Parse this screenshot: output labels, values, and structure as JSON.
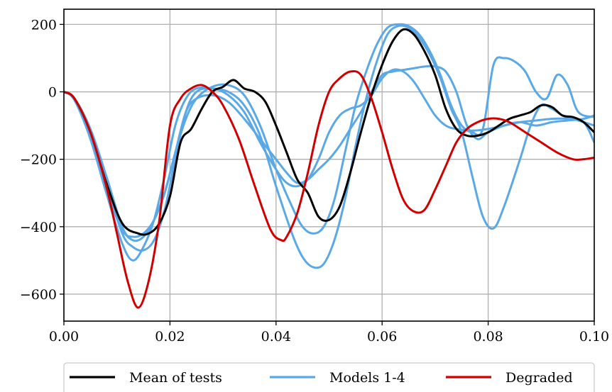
{
  "chart_data": {
    "type": "line",
    "title": "",
    "xlabel": "",
    "ylabel": "",
    "xlim": [
      0.0,
      0.1
    ],
    "ylim": [
      -680,
      245
    ],
    "xticks": [
      0.0,
      0.02,
      0.04,
      0.06,
      0.08,
      0.1
    ],
    "xtick_labels": [
      "0.00",
      "0.02",
      "0.04",
      "0.06",
      "0.08",
      "0.10"
    ],
    "yticks": [
      200,
      0,
      -200,
      -400,
      -600
    ],
    "ytick_labels": [
      "200",
      "0",
      "−200",
      "−400",
      "−600"
    ],
    "grid": true,
    "legend": {
      "placement": "bottom, outside plot",
      "entries": [
        {
          "label": "Mean of tests",
          "color": "#000000"
        },
        {
          "label": "Models 1-4",
          "color": "#5aa9e6"
        },
        {
          "label": "Degraded",
          "color": "#d10000"
        }
      ]
    },
    "series": [
      {
        "name": "Mean of tests",
        "color": "#000000",
        "x": [
          0,
          0.002,
          0.005,
          0.008,
          0.011,
          0.014,
          0.016,
          0.018,
          0.02,
          0.022,
          0.024,
          0.026,
          0.028,
          0.03,
          0.032,
          0.034,
          0.036,
          0.038,
          0.04,
          0.042,
          0.044,
          0.046,
          0.048,
          0.05,
          0.052,
          0.054,
          0.056,
          0.058,
          0.06,
          0.062,
          0.064,
          0.066,
          0.068,
          0.07,
          0.072,
          0.074,
          0.076,
          0.078,
          0.08,
          0.082,
          0.084,
          0.086,
          0.088,
          0.09,
          0.092,
          0.094,
          0.096,
          0.098,
          0.1
        ],
        "y": [
          0,
          -20,
          -120,
          -270,
          -390,
          -420,
          -420,
          -390,
          -310,
          -150,
          -110,
          -50,
          0,
          15,
          35,
          10,
          0,
          -30,
          -100,
          -180,
          -260,
          -300,
          -370,
          -380,
          -340,
          -240,
          -120,
          -10,
          80,
          150,
          185,
          170,
          120,
          50,
          -50,
          -110,
          -130,
          -130,
          -120,
          -100,
          -80,
          -70,
          -60,
          -40,
          -45,
          -70,
          -75,
          -90,
          -120
        ]
      },
      {
        "name": "Models 1-4 (a)",
        "color": "#5aa9e6",
        "x": [
          0,
          0.002,
          0.005,
          0.008,
          0.011,
          0.013,
          0.015,
          0.017,
          0.019,
          0.021,
          0.023,
          0.025,
          0.028,
          0.031,
          0.034,
          0.037,
          0.04,
          0.043,
          0.045,
          0.047,
          0.049,
          0.051,
          0.053,
          0.055,
          0.057,
          0.059,
          0.061,
          0.063,
          0.065,
          0.067,
          0.069,
          0.071,
          0.073,
          0.075,
          0.077,
          0.079,
          0.081,
          0.083,
          0.086,
          0.088,
          0.09,
          0.092,
          0.094,
          0.096,
          0.098,
          0.1
        ],
        "y": [
          0,
          -25,
          -140,
          -300,
          -450,
          -500,
          -460,
          -380,
          -250,
          -100,
          -20,
          10,
          10,
          0,
          -40,
          -130,
          -280,
          -420,
          -490,
          -520,
          -510,
          -440,
          -320,
          -160,
          -20,
          90,
          170,
          195,
          190,
          160,
          110,
          40,
          -50,
          -120,
          -250,
          -370,
          -405,
          -340,
          -200,
          -100,
          -40,
          -50,
          -70,
          -80,
          -90,
          -100
        ]
      },
      {
        "name": "Models 1-4 (b)",
        "color": "#5aa9e6",
        "x": [
          0,
          0.002,
          0.005,
          0.008,
          0.011,
          0.013,
          0.015,
          0.017,
          0.019,
          0.021,
          0.023,
          0.025,
          0.028,
          0.031,
          0.034,
          0.037,
          0.04,
          0.043,
          0.045,
          0.047,
          0.049,
          0.051,
          0.053,
          0.055,
          0.057,
          0.059,
          0.061,
          0.063,
          0.065,
          0.067,
          0.069,
          0.071,
          0.073,
          0.075,
          0.077,
          0.079,
          0.081,
          0.083,
          0.085,
          0.087,
          0.089,
          0.091,
          0.093,
          0.095,
          0.097,
          0.1
        ],
        "y": [
          0,
          -20,
          -110,
          -250,
          -400,
          -440,
          -430,
          -380,
          -300,
          -180,
          -80,
          -20,
          15,
          20,
          -10,
          -100,
          -230,
          -340,
          -400,
          -420,
          -400,
          -320,
          -180,
          -40,
          60,
          140,
          190,
          200,
          195,
          170,
          120,
          50,
          -40,
          -100,
          -120,
          -110,
          80,
          100,
          90,
          60,
          0,
          -20,
          50,
          20,
          -60,
          -75
        ]
      },
      {
        "name": "Models 1-4 (c)",
        "color": "#5aa9e6",
        "x": [
          0,
          0.002,
          0.005,
          0.008,
          0.011,
          0.013,
          0.015,
          0.017,
          0.019,
          0.021,
          0.023,
          0.025,
          0.028,
          0.031,
          0.034,
          0.037,
          0.04,
          0.042,
          0.044,
          0.046,
          0.048,
          0.05,
          0.052,
          0.054,
          0.056,
          0.058,
          0.06,
          0.062,
          0.064,
          0.066,
          0.068,
          0.07,
          0.072,
          0.074,
          0.077,
          0.08,
          0.083,
          0.086,
          0.089,
          0.092,
          0.095,
          0.098,
          0.1
        ],
        "y": [
          0,
          -20,
          -120,
          -270,
          -420,
          -460,
          -470,
          -440,
          -350,
          -200,
          -60,
          0,
          10,
          -10,
          -60,
          -150,
          -230,
          -270,
          -280,
          -260,
          -200,
          -120,
          -70,
          -50,
          -40,
          -10,
          40,
          65,
          60,
          30,
          -20,
          -70,
          -100,
          -110,
          -115,
          -110,
          -100,
          -90,
          -85,
          -80,
          -80,
          -90,
          -150
        ]
      },
      {
        "name": "Models 1-4 (d)",
        "color": "#5aa9e6",
        "x": [
          0,
          0.002,
          0.005,
          0.008,
          0.011,
          0.013,
          0.015,
          0.017,
          0.019,
          0.021,
          0.023,
          0.025,
          0.028,
          0.031,
          0.034,
          0.037,
          0.04,
          0.042,
          0.044,
          0.046,
          0.048,
          0.05,
          0.052,
          0.054,
          0.056,
          0.058,
          0.06,
          0.062,
          0.064,
          0.066,
          0.068,
          0.07,
          0.072,
          0.074,
          0.076,
          0.078,
          0.08,
          0.083,
          0.086,
          0.089,
          0.092,
          0.095,
          0.098,
          0.1
        ],
        "y": [
          0,
          -22,
          -130,
          -290,
          -410,
          -430,
          -420,
          -380,
          -300,
          -180,
          -60,
          -20,
          -10,
          -30,
          -80,
          -140,
          -200,
          -240,
          -270,
          -260,
          -230,
          -200,
          -160,
          -110,
          -60,
          0,
          50,
          60,
          65,
          70,
          75,
          75,
          60,
          0,
          -100,
          -140,
          -120,
          -100,
          -90,
          -100,
          -90,
          -85,
          -80,
          -70
        ]
      },
      {
        "name": "Degraded",
        "color": "#d10000",
        "x": [
          0,
          0.002,
          0.005,
          0.008,
          0.01,
          0.012,
          0.014,
          0.016,
          0.018,
          0.02,
          0.022,
          0.024,
          0.026,
          0.028,
          0.03,
          0.033,
          0.036,
          0.039,
          0.041,
          0.042,
          0.044,
          0.046,
          0.048,
          0.05,
          0.052,
          0.054,
          0.056,
          0.058,
          0.06,
          0.062,
          0.064,
          0.066,
          0.068,
          0.07,
          0.072,
          0.074,
          0.076,
          0.078,
          0.08,
          0.082,
          0.084,
          0.087,
          0.09,
          0.093,
          0.096,
          0.098,
          0.1
        ],
        "y": [
          0,
          -20,
          -120,
          -280,
          -420,
          -560,
          -640,
          -560,
          -380,
          -100,
          -20,
          10,
          20,
          0,
          -40,
          -140,
          -280,
          -410,
          -440,
          -430,
          -360,
          -240,
          -100,
          0,
          40,
          60,
          50,
          -20,
          -120,
          -230,
          -320,
          -355,
          -350,
          -290,
          -220,
          -150,
          -110,
          -90,
          -80,
          -80,
          -90,
          -120,
          -150,
          -180,
          -200,
          -200,
          -195
        ]
      }
    ]
  }
}
